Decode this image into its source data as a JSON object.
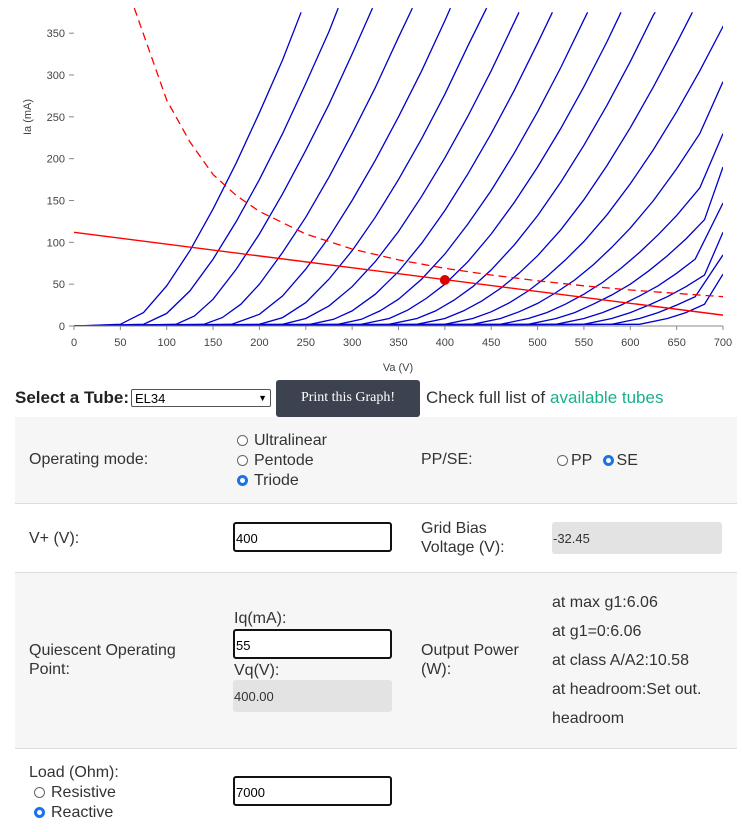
{
  "chart_data": {
    "type": "line",
    "xlabel": "Va (V)",
    "ylabel": "Ia (mA)",
    "xlim": [
      0,
      700
    ],
    "ylim": [
      0,
      380
    ],
    "x_ticks": [
      0,
      50,
      100,
      150,
      200,
      250,
      300,
      350,
      400,
      450,
      500,
      550,
      600,
      650,
      700
    ],
    "y_ticks": [
      0,
      50,
      100,
      150,
      200,
      250,
      300,
      350
    ],
    "curve_color": "#0000cc",
    "load_line_color": "#ff0000",
    "series": [
      {
        "values": [
          [
            0,
            0
          ],
          [
            50,
            2
          ],
          [
            75,
            16
          ],
          [
            100,
            48
          ],
          [
            125,
            90
          ],
          [
            150,
            140
          ],
          [
            175,
            195
          ],
          [
            200,
            255
          ],
          [
            225,
            318
          ],
          [
            245,
            375
          ]
        ]
      },
      {
        "values": [
          [
            0,
            0
          ],
          [
            75,
            2
          ],
          [
            100,
            15
          ],
          [
            125,
            42
          ],
          [
            150,
            80
          ],
          [
            175,
            125
          ],
          [
            200,
            175
          ],
          [
            225,
            230
          ],
          [
            250,
            290
          ],
          [
            275,
            352
          ],
          [
            285,
            380
          ]
        ]
      },
      {
        "values": [
          [
            0,
            0
          ],
          [
            110,
            2
          ],
          [
            130,
            12
          ],
          [
            150,
            32
          ],
          [
            175,
            68
          ],
          [
            200,
            110
          ],
          [
            225,
            158
          ],
          [
            250,
            210
          ],
          [
            275,
            265
          ],
          [
            300,
            325
          ],
          [
            322,
            380
          ]
        ]
      },
      {
        "values": [
          [
            0,
            0
          ],
          [
            140,
            2
          ],
          [
            160,
            10
          ],
          [
            180,
            26
          ],
          [
            200,
            50
          ],
          [
            225,
            88
          ],
          [
            250,
            130
          ],
          [
            275,
            178
          ],
          [
            300,
            230
          ],
          [
            325,
            285
          ],
          [
            350,
            345
          ],
          [
            365,
            380
          ]
        ]
      },
      {
        "values": [
          [
            0,
            0
          ],
          [
            170,
            2
          ],
          [
            200,
            14
          ],
          [
            225,
            36
          ],
          [
            250,
            68
          ],
          [
            275,
            106
          ],
          [
            300,
            150
          ],
          [
            325,
            198
          ],
          [
            350,
            250
          ],
          [
            375,
            305
          ],
          [
            400,
            365
          ],
          [
            406,
            380
          ]
        ]
      },
      {
        "values": [
          [
            0,
            0
          ],
          [
            200,
            2
          ],
          [
            225,
            10
          ],
          [
            250,
            28
          ],
          [
            275,
            56
          ],
          [
            300,
            90
          ],
          [
            325,
            130
          ],
          [
            350,
            175
          ],
          [
            375,
            224
          ],
          [
            400,
            277
          ],
          [
            425,
            335
          ],
          [
            445,
            380
          ]
        ]
      },
      {
        "values": [
          [
            0,
            0
          ],
          [
            225,
            2
          ],
          [
            250,
            9
          ],
          [
            275,
            24
          ],
          [
            300,
            47
          ],
          [
            325,
            77
          ],
          [
            350,
            113
          ],
          [
            375,
            155
          ],
          [
            400,
            201
          ],
          [
            425,
            251
          ],
          [
            450,
            305
          ],
          [
            480,
            375
          ]
        ]
      },
      {
        "values": [
          [
            0,
            0
          ],
          [
            255,
            2
          ],
          [
            280,
            8
          ],
          [
            300,
            18
          ],
          [
            325,
            38
          ],
          [
            350,
            65
          ],
          [
            375,
            99
          ],
          [
            400,
            138
          ],
          [
            425,
            182
          ],
          [
            450,
            230
          ],
          [
            475,
            282
          ],
          [
            500,
            338
          ],
          [
            516,
            375
          ]
        ]
      },
      {
        "values": [
          [
            0,
            0
          ],
          [
            285,
            2
          ],
          [
            310,
            8
          ],
          [
            330,
            18
          ],
          [
            350,
            32
          ],
          [
            375,
            56
          ],
          [
            400,
            86
          ],
          [
            425,
            122
          ],
          [
            450,
            162
          ],
          [
            475,
            207
          ],
          [
            500,
            256
          ],
          [
            525,
            309
          ],
          [
            550,
            366
          ],
          [
            554,
            375
          ]
        ]
      },
      {
        "values": [
          [
            0,
            0
          ],
          [
            310,
            2
          ],
          [
            340,
            9
          ],
          [
            360,
            19
          ],
          [
            380,
            33
          ],
          [
            400,
            50
          ],
          [
            425,
            77
          ],
          [
            450,
            110
          ],
          [
            475,
            148
          ],
          [
            500,
            190
          ],
          [
            525,
            236
          ],
          [
            550,
            286
          ],
          [
            575,
            340
          ],
          [
            590,
            375
          ]
        ]
      },
      {
        "values": [
          [
            0,
            0
          ],
          [
            340,
            2
          ],
          [
            370,
            9
          ],
          [
            390,
            18
          ],
          [
            410,
            31
          ],
          [
            430,
            47
          ],
          [
            450,
            67
          ],
          [
            475,
            97
          ],
          [
            500,
            132
          ],
          [
            525,
            172
          ],
          [
            550,
            216
          ],
          [
            575,
            264
          ],
          [
            600,
            316
          ],
          [
            625,
            372
          ],
          [
            627,
            375
          ]
        ]
      },
      {
        "values": [
          [
            0,
            0
          ],
          [
            370,
            2
          ],
          [
            400,
            9
          ],
          [
            420,
            18
          ],
          [
            440,
            30
          ],
          [
            460,
            45
          ],
          [
            480,
            63
          ],
          [
            500,
            84
          ],
          [
            525,
            115
          ],
          [
            550,
            151
          ],
          [
            575,
            192
          ],
          [
            600,
            237
          ],
          [
            625,
            286
          ],
          [
            650,
            338
          ],
          [
            667,
            375
          ]
        ]
      },
      {
        "values": [
          [
            0,
            0
          ],
          [
            400,
            2
          ],
          [
            430,
            9
          ],
          [
            450,
            17
          ],
          [
            470,
            28
          ],
          [
            490,
            42
          ],
          [
            510,
            59
          ],
          [
            530,
            79
          ],
          [
            550,
            101
          ],
          [
            575,
            133
          ],
          [
            600,
            170
          ],
          [
            625,
            211
          ],
          [
            650,
            256
          ],
          [
            675,
            305
          ],
          [
            700,
            358
          ],
          [
            708,
            375
          ]
        ]
      },
      {
        "values": [
          [
            0,
            0
          ],
          [
            430,
            2
          ],
          [
            460,
            9
          ],
          [
            480,
            17
          ],
          [
            500,
            27
          ],
          [
            520,
            40
          ],
          [
            540,
            55
          ],
          [
            560,
            73
          ],
          [
            580,
            94
          ],
          [
            600,
            117
          ],
          [
            625,
            150
          ],
          [
            650,
            188
          ],
          [
            675,
            230
          ],
          [
            700,
            292
          ]
        ]
      },
      {
        "values": [
          [
            0,
            0
          ],
          [
            460,
            2
          ],
          [
            490,
            9
          ],
          [
            510,
            16
          ],
          [
            530,
            26
          ],
          [
            550,
            38
          ],
          [
            570,
            52
          ],
          [
            590,
            69
          ],
          [
            610,
            88
          ],
          [
            630,
            109
          ],
          [
            650,
            132
          ],
          [
            675,
            165
          ],
          [
            700,
            230
          ]
        ]
      },
      {
        "values": [
          [
            0,
            0
          ],
          [
            490,
            2
          ],
          [
            520,
            9
          ],
          [
            540,
            16
          ],
          [
            560,
            26
          ],
          [
            580,
            37
          ],
          [
            600,
            50
          ],
          [
            620,
            66
          ],
          [
            640,
            84
          ],
          [
            660,
            104
          ],
          [
            680,
            127
          ],
          [
            700,
            190
          ]
        ]
      },
      {
        "values": [
          [
            0,
            0
          ],
          [
            520,
            2
          ],
          [
            550,
            9
          ],
          [
            570,
            16
          ],
          [
            590,
            25
          ],
          [
            610,
            36
          ],
          [
            630,
            48
          ],
          [
            650,
            63
          ],
          [
            670,
            80
          ],
          [
            700,
            147
          ]
        ]
      },
      {
        "values": [
          [
            0,
            0
          ],
          [
            550,
            2
          ],
          [
            580,
            9
          ],
          [
            600,
            16
          ],
          [
            620,
            25
          ],
          [
            640,
            35
          ],
          [
            660,
            47
          ],
          [
            680,
            61
          ],
          [
            700,
            112
          ]
        ]
      },
      {
        "values": [
          [
            0,
            0
          ],
          [
            580,
            2
          ],
          [
            610,
            9
          ],
          [
            630,
            16
          ],
          [
            650,
            25
          ],
          [
            670,
            35
          ],
          [
            700,
            85
          ]
        ]
      },
      {
        "values": [
          [
            0,
            0
          ],
          [
            610,
            2
          ],
          [
            640,
            9
          ],
          [
            660,
            16
          ],
          [
            680,
            26
          ],
          [
            700,
            62
          ]
        ]
      }
    ],
    "load_line": [
      [
        0,
        112
      ],
      [
        700,
        13
      ]
    ],
    "power_curve": [
      [
        65,
        380
      ],
      [
        100,
        270
      ],
      [
        125,
        220
      ],
      [
        150,
        181
      ],
      [
        175,
        156
      ],
      [
        200,
        137
      ],
      [
        250,
        110
      ],
      [
        300,
        92
      ],
      [
        350,
        79
      ],
      [
        400,
        69
      ],
      [
        450,
        61
      ],
      [
        500,
        54
      ],
      [
        550,
        48
      ],
      [
        600,
        43
      ],
      [
        650,
        39
      ],
      [
        700,
        35
      ]
    ],
    "operating_point": {
      "x": 400,
      "y": 55
    }
  },
  "selector": {
    "label": "Select a Tube:",
    "value": "EL34",
    "print_button": "Print this Graph!",
    "check_text": "Check full list of",
    "check_link": "available tubes"
  },
  "form": {
    "operating_mode": {
      "label": "Operating mode:",
      "options": [
        "Ultralinear",
        "Pentode",
        "Triode"
      ],
      "selected": "Triode"
    },
    "pp_se": {
      "label": "PP/SE:",
      "options": [
        "PP",
        "SE"
      ],
      "selected": "SE"
    },
    "vplus": {
      "label": "V+ (V):",
      "value": "400"
    },
    "grid_bias": {
      "label_line1": "Grid Bias",
      "label_line2": "Voltage (V):",
      "value": "-32.45"
    },
    "quiescent": {
      "label_line1": "Quiescent Operating",
      "label_line2": "Point:",
      "iq_label": "Iq(mA):",
      "iq_value": "55",
      "vq_label": "Vq(V):",
      "vq_value": "400.00"
    },
    "output_power": {
      "label_line1": "Output Power",
      "label_line2": "(W):",
      "lines": [
        "at max g1:6.06",
        "at g1=0:6.06",
        "at class A/A2:10.58",
        "at headroom:Set out.",
        "headroom"
      ]
    },
    "load": {
      "label": "Load (Ohm):",
      "options": [
        "Resistive",
        "Reactive"
      ],
      "selected": "Reactive",
      "value": "7000"
    }
  }
}
